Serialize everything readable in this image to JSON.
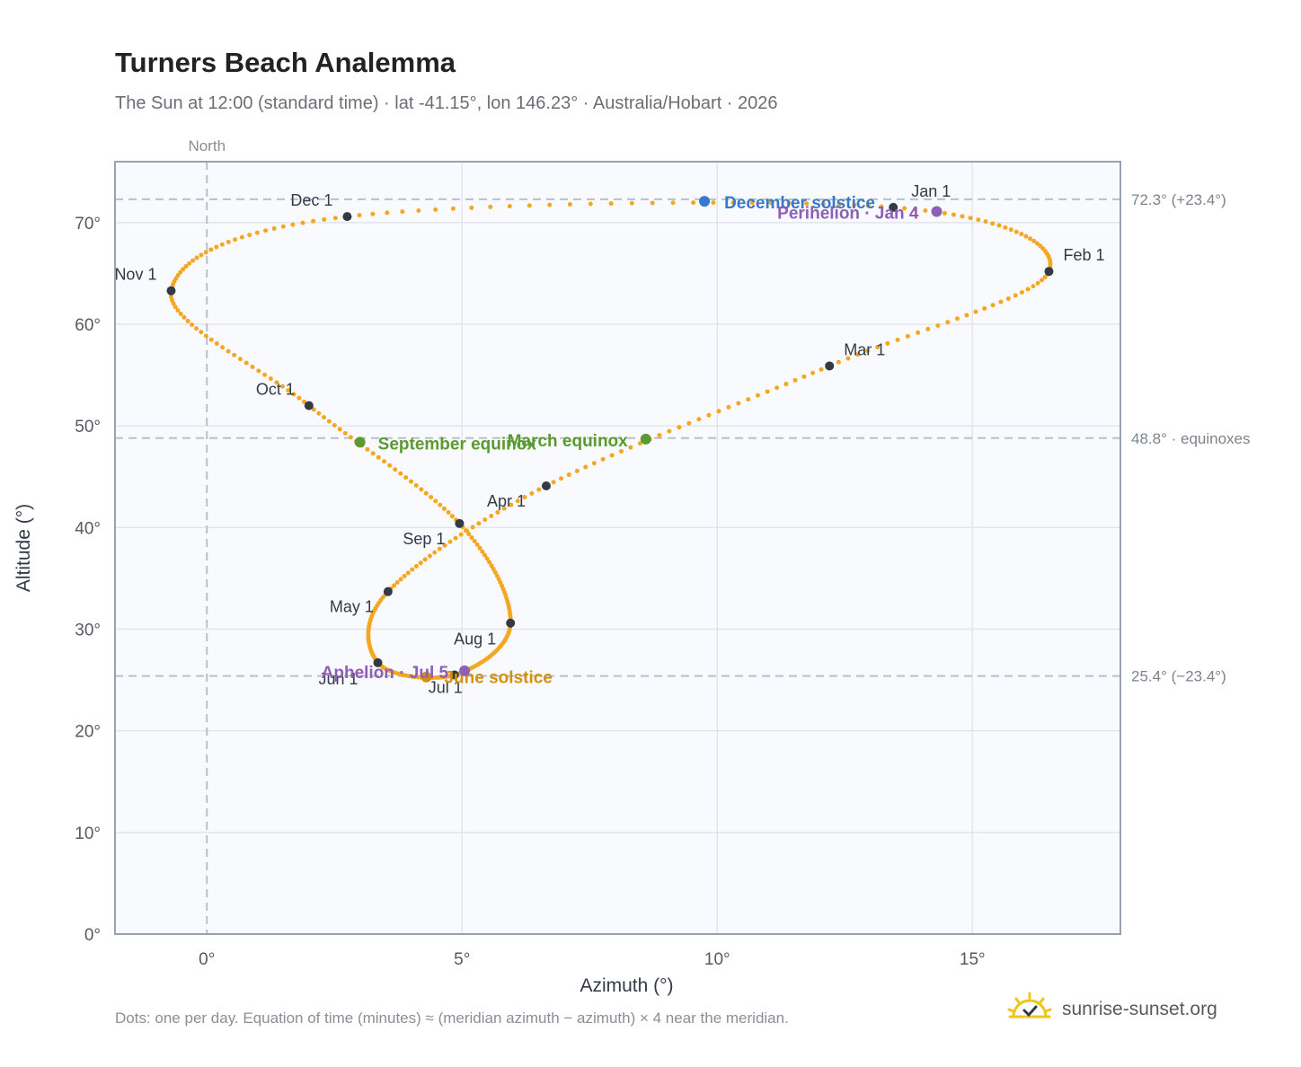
{
  "title": "Turners Beach Analemma",
  "subtitle": "The Sun at 12:00 (standard time) · lat -41.15°, lon 146.23° · Australia/Hobart · 2026",
  "footnote": "Dots: one per day. Equation of time (minutes) ≈ (meridian azimuth − azimuth) × 4 near the meridian.",
  "brand": {
    "name": "sunrise-sunset.org",
    "logo_icon": "sun-rising-icon",
    "logo_color": "#f0c419"
  },
  "colors": {
    "curve": "#f5a623",
    "month_dot": "#333a45",
    "solstice_dec": "#3a78c9",
    "solstice_jun": "#d4900a",
    "equinox": "#5a9a2f",
    "apsis": "#8e5fb5",
    "plot_bg": "#f8fafd",
    "grid": "#e2e6eb",
    "ref_line": "#b6c1cb"
  },
  "chart_data": {
    "type": "scatter",
    "title": "Turners Beach Analemma",
    "xlabel": "Azimuth (°)",
    "ylabel": "Altitude (°)",
    "xlim": [
      -1.8,
      17.9
    ],
    "ylim": [
      0,
      76
    ],
    "x_ticks": [
      0,
      5,
      10,
      15
    ],
    "x_tick_labels": [
      "0°",
      "5°",
      "10°",
      "15°"
    ],
    "y_ticks": [
      0,
      10,
      20,
      30,
      40,
      50,
      60,
      70
    ],
    "y_tick_labels": [
      "0°",
      "10°",
      "20°",
      "30°",
      "40°",
      "50°",
      "60°",
      "70°"
    ],
    "grid": true,
    "meridian": {
      "x": 0,
      "label": "North"
    },
    "reference_lines": [
      {
        "y": 72.3,
        "label": "72.3° (+23.4°)"
      },
      {
        "y": 48.8,
        "label": "48.8° · equinoxes"
      },
      {
        "y": 25.4,
        "label": "25.4° (−23.4°)"
      }
    ],
    "daily_points_description": "one dot per day",
    "month_markers": [
      {
        "label": "Jan 1",
        "x": 13.45,
        "y": 71.5
      },
      {
        "label": "Feb 1",
        "x": 16.5,
        "y": 65.2
      },
      {
        "label": "Mar 1",
        "x": 12.2,
        "y": 55.9
      },
      {
        "label": "Apr 1",
        "x": 6.65,
        "y": 44.1
      },
      {
        "label": "May 1",
        "x": 3.55,
        "y": 33.7
      },
      {
        "label": "Jun 1",
        "x": 3.35,
        "y": 26.7
      },
      {
        "label": "Jul 1",
        "x": 4.85,
        "y": 25.5
      },
      {
        "label": "Aug 1",
        "x": 5.95,
        "y": 30.6
      },
      {
        "label": "Sep 1",
        "x": 4.95,
        "y": 40.4
      },
      {
        "label": "Oct 1",
        "x": 2.0,
        "y": 52.0
      },
      {
        "label": "Nov 1",
        "x": -0.7,
        "y": 63.3
      },
      {
        "label": "Dec 1",
        "x": 2.75,
        "y": 70.6
      }
    ],
    "events": [
      {
        "label": "December solstice",
        "x": 9.75,
        "y": 72.1,
        "kind": "solstice_dec"
      },
      {
        "label": "Perihelion · Jan 4",
        "x": 14.3,
        "y": 71.1,
        "kind": "apsis"
      },
      {
        "label": "March equinox",
        "x": 8.6,
        "y": 48.7,
        "kind": "equinox"
      },
      {
        "label": "September equinox",
        "x": 3.0,
        "y": 48.4,
        "kind": "equinox"
      },
      {
        "label": "June solstice",
        "x": 4.3,
        "y": 25.3,
        "kind": "solstice_jun"
      },
      {
        "label": "Aphelion · Jul 5",
        "x": 5.05,
        "y": 25.9,
        "kind": "apsis"
      }
    ]
  }
}
